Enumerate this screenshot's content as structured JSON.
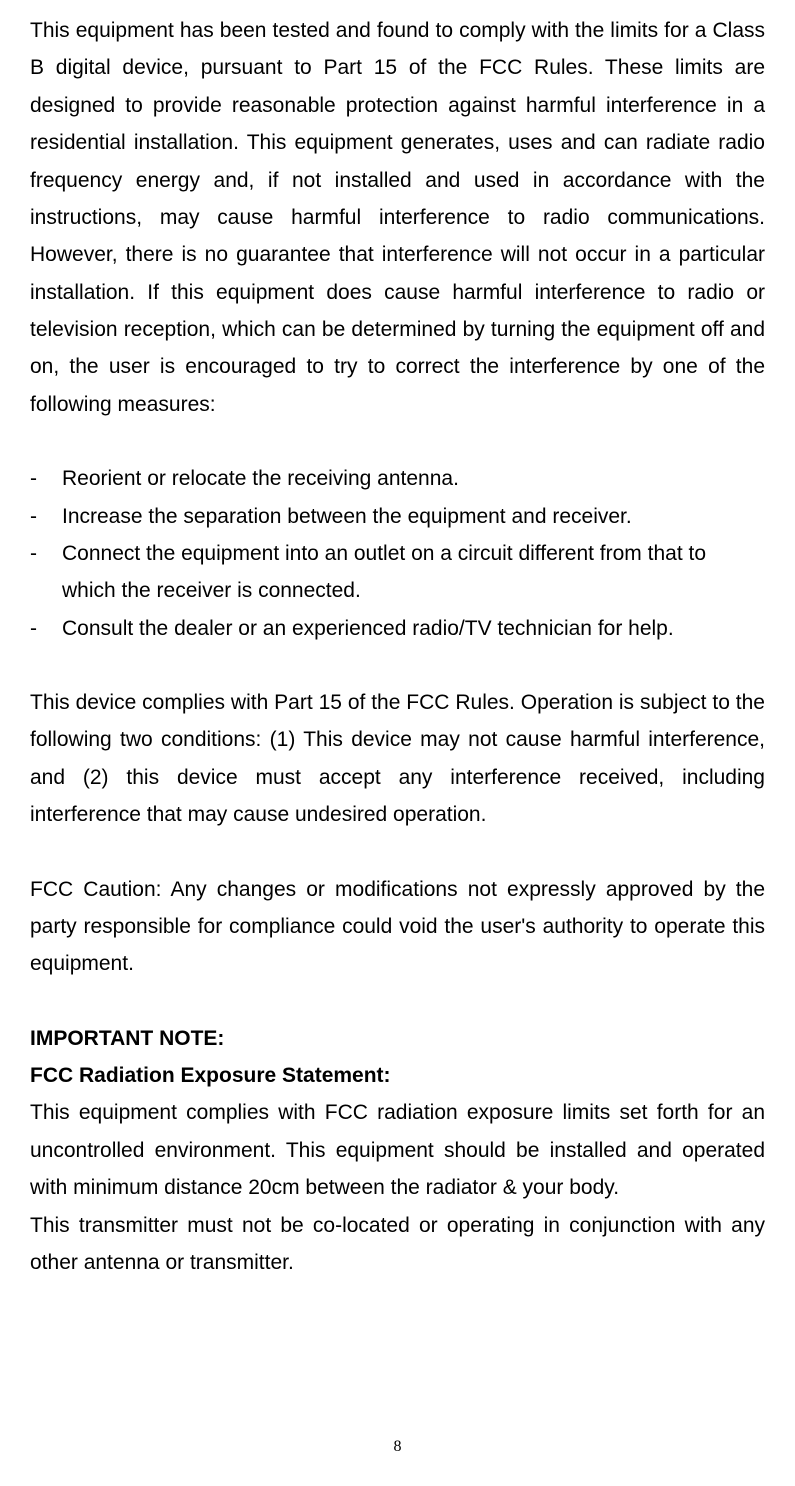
{
  "paragraphs": {
    "intro": "This equipment has been tested and found to comply with the limits for a Class B digital device, pursuant to Part 15 of the FCC Rules.   These limits are designed to provide reasonable protection against harmful interference in a residential installation.   This equipment generates, uses and can radiate radio frequency energy and, if not installed and used in accordance with the instructions, may cause harmful interference to radio communications.   However, there is no guarantee that interference will not occur in a particular installation.   If this equipment does cause harmful interference to radio or television reception, which can be determined by turning the equipment off and on, the user is encouraged to try to correct the interference by one of the following measures:",
    "compliance": "This device complies with Part 15 of the FCC Rules. Operation is subject to the following two conditions: (1) This device may not cause harmful interference, and (2) this device must accept any interference received, including interference that may cause undesired operation.",
    "caution": "FCC Caution: Any changes or modifications not expressly approved by the party responsible for compliance could void the user's authority to operate this equipment.",
    "exposure": "This equipment complies with FCC radiation exposure limits set forth for an uncontrolled environment. This equipment should be installed and operated with minimum distance 20cm between the radiator & your body.",
    "transmitter": "This transmitter must not be co-located or operating in conjunction with any other antenna or transmitter."
  },
  "bullets": [
    "Reorient or relocate the receiving antenna.",
    "Increase the separation between the equipment and receiver.",
    "Connect the equipment into an outlet on a circuit different from that to which the receiver is connected.",
    "Consult the dealer or an experienced radio/TV technician for help."
  ],
  "bulletMarker": "-",
  "headings": {
    "importantNote": "IMPORTANT NOTE:",
    "fccStatement": "FCC Radiation Exposure Statement:"
  },
  "pageNumber": "8",
  "styling": {
    "backgroundColor": "#ffffff",
    "textColor": "#000000",
    "fontSize": 21,
    "lineHeight": 1.78,
    "fontFamily": "Arial",
    "pageNumberFontSize": 16
  }
}
